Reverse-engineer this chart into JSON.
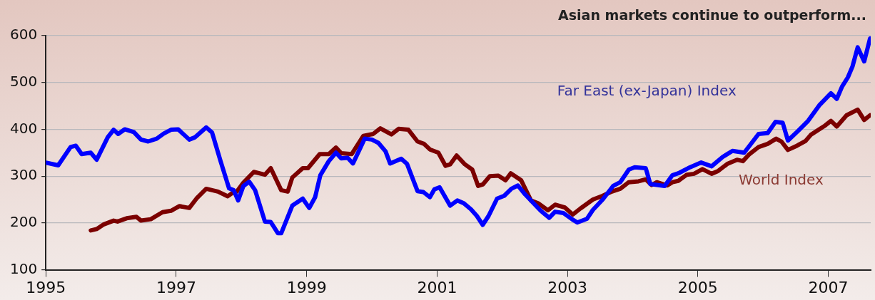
{
  "chart_data": {
    "type": "line",
    "title": "Asian markets continue to outperform...",
    "xlim": [
      1995,
      2007.65
    ],
    "xticks": [
      1995,
      1997,
      1999,
      2001,
      2003,
      2005,
      2007
    ],
    "ylim": [
      100,
      600
    ],
    "yticks": [
      100,
      200,
      300,
      400,
      500,
      600
    ],
    "grid": "y",
    "legend": false,
    "marker": "none",
    "line_style": "solid",
    "series": [
      {
        "name": "Far East (ex-Japan) Index",
        "color": "#0000ff",
        "x": [
          1995.0,
          1995.19,
          1995.38,
          1995.46,
          1995.55,
          1995.69,
          1995.78,
          1995.95,
          1996.04,
          1996.11,
          1996.21,
          1996.35,
          1996.46,
          1996.57,
          1996.7,
          1996.81,
          1996.92,
          1997.03,
          1997.2,
          1997.29,
          1997.46,
          1997.55,
          1997.68,
          1997.81,
          1997.88,
          1997.95,
          1998.03,
          1998.12,
          1998.21,
          1998.36,
          1998.45,
          1998.56,
          1998.61,
          1998.78,
          1998.94,
          1999.04,
          1999.13,
          1999.21,
          1999.34,
          1999.45,
          1999.53,
          1999.63,
          1999.71,
          1999.89,
          2000.0,
          2000.1,
          2000.21,
          2000.28,
          2000.45,
          2000.54,
          2000.7,
          2000.79,
          2000.89,
          2000.96,
          2001.04,
          2001.2,
          2001.31,
          2001.41,
          2001.52,
          2001.61,
          2001.7,
          2001.79,
          2001.92,
          2002.03,
          2002.14,
          2002.24,
          2002.35,
          2002.48,
          2002.59,
          2002.72,
          2002.81,
          2002.94,
          2003.07,
          2003.15,
          2003.3,
          2003.39,
          2003.54,
          2003.7,
          2003.81,
          2003.94,
          2004.03,
          2004.2,
          2004.27,
          2004.49,
          2004.61,
          2004.7,
          2004.88,
          2005.05,
          2005.21,
          2005.38,
          2005.53,
          2005.71,
          2005.93,
          2006.07,
          2006.19,
          2006.3,
          2006.38,
          2006.54,
          2006.69,
          2006.86,
          2007.04,
          2007.13,
          2007.21,
          2007.3,
          2007.37,
          2007.45,
          2007.55,
          2007.64
        ],
        "values": [
          329,
          323,
          362,
          365,
          347,
          350,
          335,
          383,
          399,
          390,
          400,
          394,
          378,
          374,
          380,
          391,
          399,
          400,
          378,
          383,
          404,
          393,
          332,
          274,
          270,
          248,
          279,
          288,
          270,
          203,
          202,
          178,
          178,
          237,
          252,
          232,
          255,
          302,
          332,
          350,
          338,
          339,
          327,
          380,
          378,
          371,
          353,
          327,
          337,
          326,
          268,
          266,
          255,
          272,
          276,
          237,
          248,
          242,
          229,
          215,
          196,
          215,
          252,
          258,
          273,
          280,
          261,
          242,
          226,
          211,
          224,
          221,
          208,
          201,
          209,
          228,
          250,
          279,
          287,
          314,
          319,
          317,
          283,
          279,
          302,
          306,
          319,
          329,
          321,
          341,
          354,
          350,
          390,
          392,
          416,
          414,
          376,
          397,
          418,
          451,
          477,
          465,
          491,
          511,
          534,
          575,
          545,
          594
        ]
      },
      {
        "name": "World Index",
        "color": "#7b0000",
        "x": [
          1995.69,
          1995.78,
          1995.89,
          1996.04,
          1996.1,
          1996.24,
          1996.39,
          1996.46,
          1996.61,
          1996.79,
          1996.92,
          1997.05,
          1997.2,
          1997.31,
          1997.46,
          1997.64,
          1997.79,
          1997.86,
          1997.93,
          1998.03,
          1998.19,
          1998.36,
          1998.45,
          1998.61,
          1998.71,
          1998.78,
          1998.94,
          1999.02,
          1999.2,
          1999.34,
          1999.45,
          1999.53,
          1999.69,
          1999.87,
          2000.02,
          2000.13,
          2000.3,
          2000.41,
          2000.56,
          2000.7,
          2000.8,
          2000.89,
          2001.02,
          2001.13,
          2001.2,
          2001.3,
          2001.42,
          2001.54,
          2001.63,
          2001.7,
          2001.81,
          2001.94,
          2002.05,
          2002.13,
          2002.29,
          2002.44,
          2002.55,
          2002.7,
          2002.81,
          2002.96,
          2003.08,
          2003.2,
          2003.39,
          2003.54,
          2003.68,
          2003.81,
          2003.94,
          2004.09,
          2004.2,
          2004.29,
          2004.37,
          2004.53,
          2004.61,
          2004.7,
          2004.83,
          2004.94,
          2005.07,
          2005.21,
          2005.31,
          2005.45,
          2005.6,
          2005.69,
          2005.79,
          2005.93,
          2006.07,
          2006.2,
          2006.28,
          2006.38,
          2006.52,
          2006.65,
          2006.73,
          2006.86,
          2006.95,
          2007.04,
          2007.13,
          2007.28,
          2007.45,
          2007.55,
          2007.64
        ],
        "values": [
          184,
          187,
          197,
          205,
          203,
          210,
          213,
          205,
          208,
          223,
          226,
          236,
          232,
          252,
          273,
          267,
          257,
          264,
          267,
          286,
          309,
          303,
          317,
          270,
          267,
          297,
          317,
          317,
          347,
          347,
          361,
          349,
          347,
          386,
          390,
          402,
          389,
          401,
          399,
          374,
          369,
          357,
          350,
          322,
          325,
          344,
          326,
          314,
          279,
          282,
          300,
          301,
          291,
          306,
          291,
          248,
          242,
          227,
          239,
          233,
          218,
          231,
          250,
          258,
          267,
          273,
          287,
          289,
          293,
          281,
          287,
          280,
          287,
          290,
          303,
          305,
          315,
          305,
          311,
          326,
          335,
          332,
          347,
          362,
          369,
          380,
          374,
          356,
          365,
          375,
          388,
          400,
          408,
          418,
          406,
          430,
          442,
          420,
          430
        ]
      }
    ]
  }
}
